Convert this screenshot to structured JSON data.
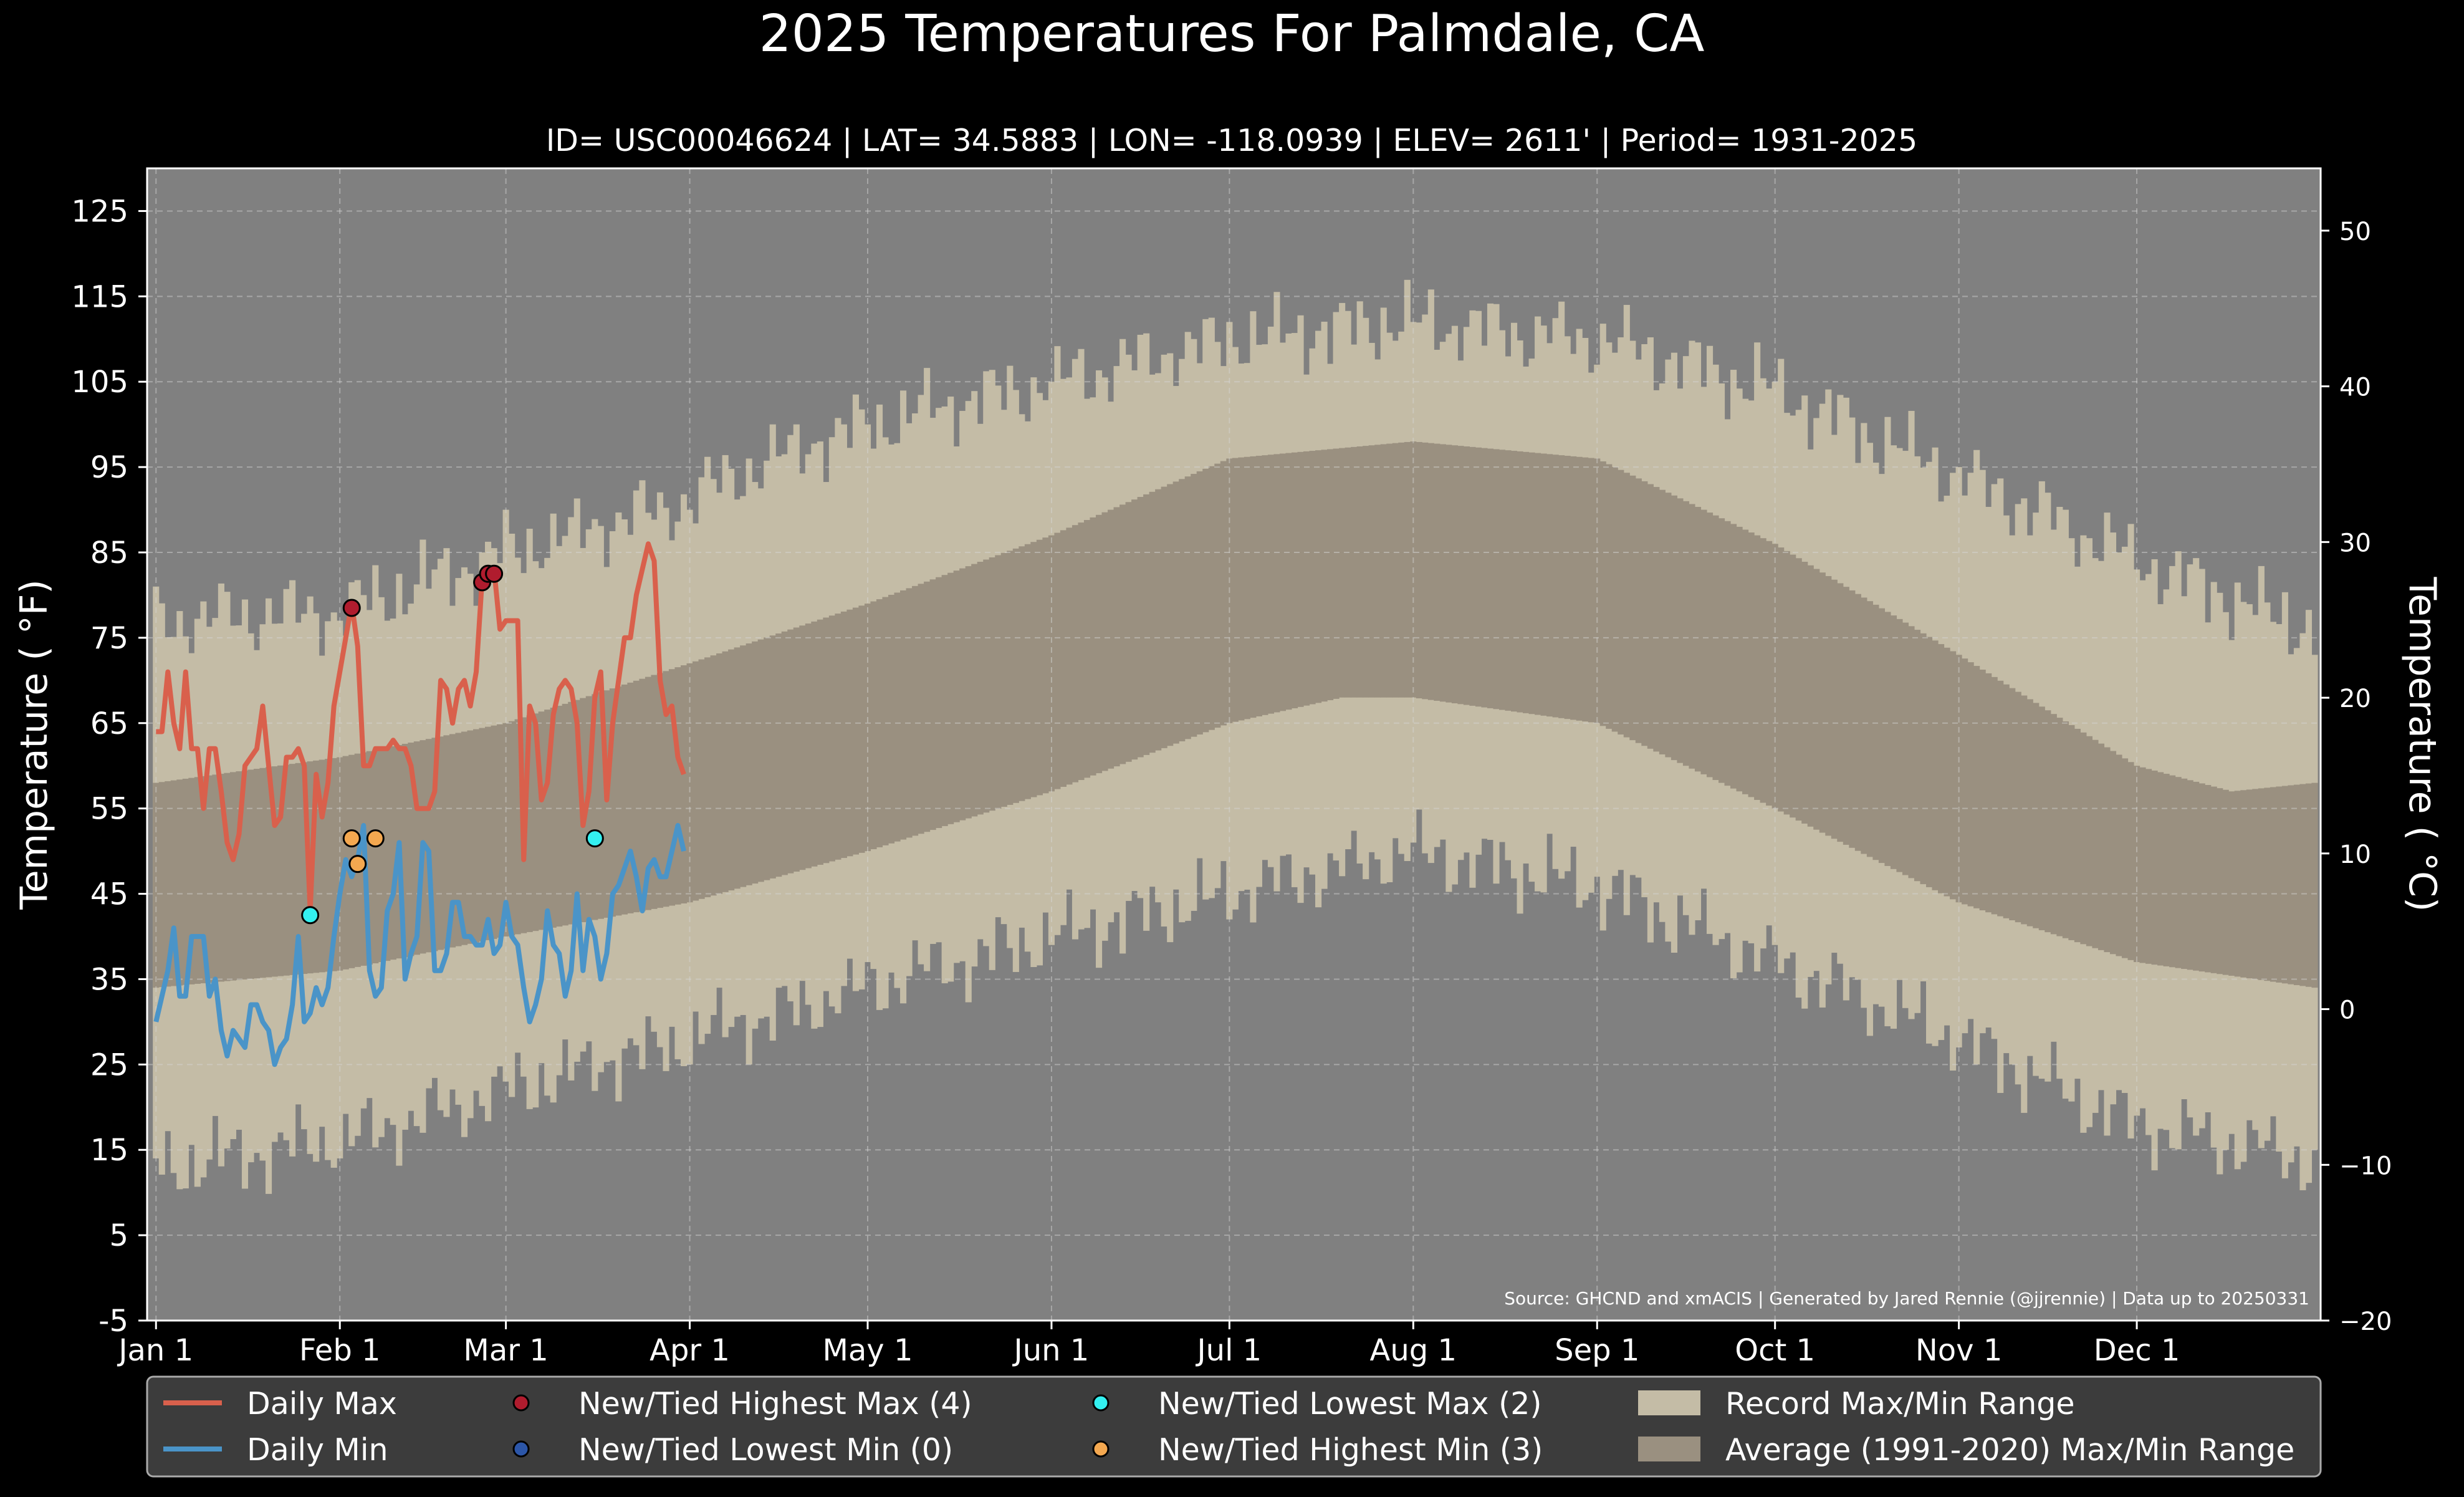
{
  "chart_data": {
    "type": "line",
    "title": "2025 Temperatures For Palmdale, CA",
    "subtitle": "ID= USC00046624 | LAT= 34.5883 | LON= -118.0939 | ELEV= 2611' | Period= 1931-2025",
    "ylabel": "Temperature ( °F)",
    "ylabel_right": "Temperature ( °C)",
    "source": "Source: GHCND and xmACIS | Generated by Jared Rennie (@jjrennie) | Data up to 20250331",
    "ylim": [
      -5,
      130
    ],
    "ylim_right": [
      -20,
      54
    ],
    "xlim": [
      -1.5,
      365
    ],
    "yticks": [
      -5,
      5,
      15,
      25,
      35,
      45,
      55,
      65,
      75,
      85,
      95,
      105,
      115,
      125
    ],
    "yticks_right": [
      -20,
      -10,
      0,
      10,
      20,
      30,
      40,
      50
    ],
    "grid": true,
    "legend_position": "bottom",
    "colors": {
      "background": "#000000",
      "plot_bg": "#808080",
      "record_range": "#c4bca6",
      "normal_range": "#9a9080",
      "daily_max": "#d9604c",
      "daily_min": "#4a94c8",
      "record_high_max": "#b01c2e",
      "record_low_min": "#2c56a8",
      "record_low_max": "#33f0f0",
      "record_high_min": "#f4a850",
      "legend_bg": "#3c3c3c",
      "text": "#ffffff"
    },
    "month_ticks": [
      {
        "label": "Jan 1",
        "day": 0
      },
      {
        "label": "Feb 1",
        "day": 31
      },
      {
        "label": "Mar 1",
        "day": 59
      },
      {
        "label": "Apr 1",
        "day": 90
      },
      {
        "label": "May 1",
        "day": 120
      },
      {
        "label": "Jun 1",
        "day": 151
      },
      {
        "label": "Jul 1",
        "day": 181
      },
      {
        "label": "Aug 1",
        "day": 212
      },
      {
        "label": "Sep 1",
        "day": 243
      },
      {
        "label": "Oct 1",
        "day": 273
      },
      {
        "label": "Nov 1",
        "day": 304
      },
      {
        "label": "Dec 1",
        "day": 334
      }
    ],
    "normal_max_anchors": [
      [
        0,
        58
      ],
      [
        31,
        61
      ],
      [
        59,
        65
      ],
      [
        90,
        72
      ],
      [
        120,
        79
      ],
      [
        151,
        87
      ],
      [
        181,
        96
      ],
      [
        212,
        98
      ],
      [
        243,
        96
      ],
      [
        273,
        86
      ],
      [
        304,
        73
      ],
      [
        334,
        60
      ],
      [
        350,
        57
      ],
      [
        364,
        58
      ]
    ],
    "normal_min_anchors": [
      [
        0,
        34
      ],
      [
        31,
        36
      ],
      [
        59,
        40
      ],
      [
        90,
        44
      ],
      [
        120,
        50
      ],
      [
        151,
        57
      ],
      [
        181,
        65
      ],
      [
        200,
        68
      ],
      [
        212,
        68
      ],
      [
        243,
        65
      ],
      [
        273,
        55
      ],
      [
        304,
        44
      ],
      [
        334,
        37
      ],
      [
        364,
        34
      ]
    ],
    "record_max_anchors": [
      [
        0,
        77
      ],
      [
        31,
        78
      ],
      [
        59,
        85
      ],
      [
        90,
        91
      ],
      [
        100,
        95
      ],
      [
        120,
        100
      ],
      [
        151,
        105
      ],
      [
        181,
        110
      ],
      [
        212,
        112
      ],
      [
        243,
        110
      ],
      [
        273,
        104
      ],
      [
        304,
        94
      ],
      [
        334,
        84
      ],
      [
        364,
        76
      ]
    ],
    "record_min_anchors": [
      [
        0,
        13
      ],
      [
        31,
        16
      ],
      [
        59,
        22
      ],
      [
        90,
        28
      ],
      [
        120,
        34
      ],
      [
        151,
        40
      ],
      [
        181,
        45
      ],
      [
        212,
        50
      ],
      [
        243,
        46
      ],
      [
        273,
        37
      ],
      [
        304,
        28
      ],
      [
        334,
        18
      ],
      [
        364,
        14
      ]
    ],
    "daily_max": [
      64,
      64,
      71,
      65,
      62,
      71,
      62,
      62,
      55,
      62,
      62,
      57,
      51,
      49,
      52,
      60,
      61,
      62,
      67,
      60,
      53,
      54,
      61,
      61,
      62,
      60,
      43,
      59,
      54,
      58,
      67,
      71,
      75,
      79,
      74,
      60,
      60,
      62,
      62,
      62,
      63,
      62,
      62,
      60,
      55,
      55,
      55,
      57,
      70,
      69,
      65,
      69,
      70,
      67,
      71,
      82,
      83,
      83,
      76,
      77,
      77,
      77,
      49,
      67,
      65,
      56,
      58,
      66,
      69,
      70,
      69,
      65,
      53,
      57,
      68,
      71,
      56,
      65,
      70,
      75,
      75,
      80,
      83,
      86,
      84,
      70,
      66,
      67,
      61,
      59
    ],
    "daily_min": [
      30,
      33,
      36,
      41,
      33,
      33,
      40,
      40,
      40,
      33,
      35,
      29,
      26,
      29,
      28,
      27,
      32,
      32,
      30,
      29,
      25,
      27,
      28,
      32,
      40,
      30,
      31,
      34,
      32,
      34,
      40,
      45,
      49,
      47,
      49,
      53,
      36,
      33,
      34,
      43,
      45,
      51,
      35,
      38,
      40,
      51,
      50,
      36,
      36,
      38,
      44,
      44,
      40,
      40,
      39,
      39,
      42,
      38,
      39,
      44,
      40,
      39,
      34,
      30,
      32,
      35,
      43,
      39,
      38,
      33,
      36,
      45,
      36,
      42,
      40,
      35,
      38,
      45,
      46,
      48,
      50,
      47,
      43,
      48,
      49,
      47,
      47,
      50,
      53,
      50
    ],
    "series": [
      {
        "name": "Daily Max",
        "kind": "line"
      },
      {
        "name": "Daily Min",
        "kind": "line"
      },
      {
        "name": "New/Tied Highest Max (4)",
        "kind": "marker",
        "points": [
          [
            33,
            78.5
          ],
          [
            55,
            81.5
          ],
          [
            56,
            82.5
          ],
          [
            57,
            82.5
          ]
        ]
      },
      {
        "name": "New/Tied Lowest Min (0)",
        "kind": "marker",
        "points": []
      },
      {
        "name": "New/Tied Lowest Max (2)",
        "kind": "marker",
        "points": [
          [
            26,
            42.5
          ],
          [
            74,
            51.5
          ]
        ]
      },
      {
        "name": "New/Tied Highest Min (3)",
        "kind": "marker",
        "points": [
          [
            33,
            51.5
          ],
          [
            34,
            48.5
          ],
          [
            37,
            51.5
          ]
        ]
      },
      {
        "name": "Record Max/Min Range",
        "kind": "band"
      },
      {
        "name": "Average (1991-2020) Max/Min Range",
        "kind": "band"
      }
    ]
  }
}
